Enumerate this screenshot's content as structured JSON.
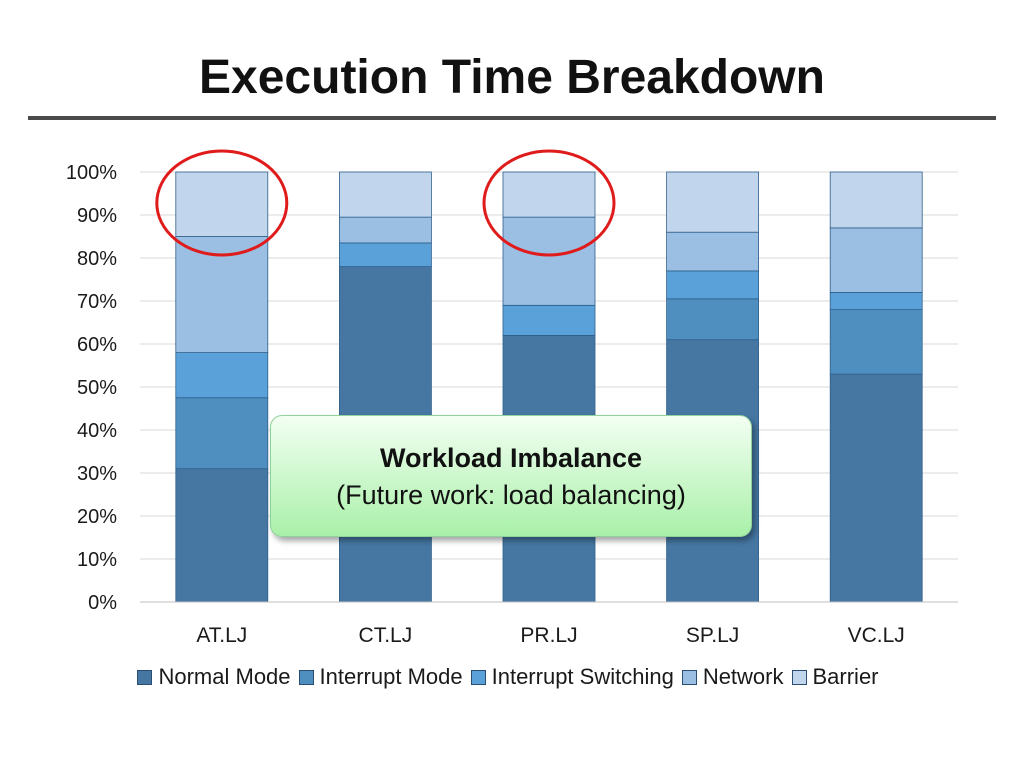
{
  "slide": {
    "title": "Execution Time Breakdown"
  },
  "callout": {
    "title": "Workload Imbalance",
    "subtitle": "(Future work: load balancing)"
  },
  "highlight": {
    "color": "#e01b1b",
    "circled_categories": [
      "AT.LJ",
      "PR.LJ"
    ]
  },
  "chart_data": {
    "type": "bar",
    "stacked": true,
    "categories": [
      "AT.LJ",
      "CT.LJ",
      "PR.LJ",
      "SP.LJ",
      "VC.LJ"
    ],
    "series": [
      {
        "name": "Normal Mode",
        "color": "#4677a3",
        "values": [
          31,
          78,
          62,
          61,
          53
        ]
      },
      {
        "name": "Interrupt Mode",
        "color": "#4f8fc0",
        "values": [
          16.5,
          0,
          0,
          9.5,
          15
        ]
      },
      {
        "name": "Interrupt Switching",
        "color": "#5ba1d9",
        "values": [
          10.5,
          5.5,
          7,
          6.5,
          4
        ]
      },
      {
        "name": "Network",
        "color": "#9bbfe3",
        "values": [
          27,
          6,
          20.5,
          9,
          15
        ]
      },
      {
        "name": "Barrier",
        "color": "#c1d5ec",
        "values": [
          15,
          10.5,
          10.5,
          14,
          13
        ]
      }
    ],
    "yticks": [
      "0%",
      "10%",
      "20%",
      "30%",
      "40%",
      "50%",
      "60%",
      "70%",
      "80%",
      "90%",
      "100%"
    ],
    "ylim": [
      0,
      100
    ],
    "grid": true,
    "legend": "bottom"
  }
}
